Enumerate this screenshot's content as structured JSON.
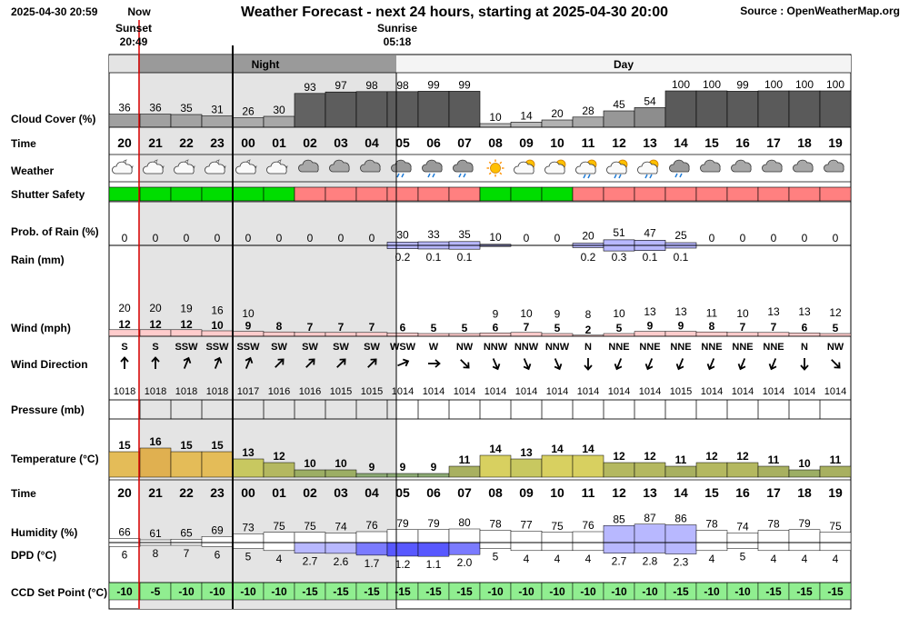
{
  "header": {
    "timestamp": "2025-04-30 20:59",
    "now_label": "Now",
    "title": "Weather Forecast - next 24 hours, starting at 2025-04-30 20:00",
    "source": "Source : OpenWeatherMap.org",
    "sunset_label": "Sunset",
    "sunset_time": "20:49",
    "sunrise_label": "Sunrise",
    "sunrise_time": "05:18",
    "night_label": "Night",
    "day_label": "Day"
  },
  "row_labels": {
    "cloud": "Cloud Cover (%)",
    "time": "Time",
    "weather": "Weather",
    "shutter": "Shutter Safety",
    "rain_prob": "Prob. of Rain (%)",
    "rain": "Rain (mm)",
    "wind": "Wind (mph)",
    "wind_dir": "Wind Direction",
    "pressure": "Pressure (mb)",
    "temperature": "Temperature (°C)",
    "humidity": "Humidity (%)",
    "dpd": "DPD (°C)",
    "ccd": "CCD Set Point (°C)"
  },
  "colors": {
    "safe": "#00dd00",
    "unsafe": "#ff8080",
    "night_shade": "#e4e4e4",
    "now_line": "#dd0000",
    "rain_fill": "#b8b8ff",
    "dpd_fill": "#5858ff",
    "ccd_fill": "#90ee90"
  },
  "chart_data": {
    "type": "table",
    "hours": [
      "20",
      "21",
      "22",
      "23",
      "00",
      "01",
      "02",
      "03",
      "04",
      "05",
      "06",
      "07",
      "08",
      "09",
      "10",
      "11",
      "12",
      "13",
      "14",
      "15",
      "16",
      "17",
      "18",
      "19"
    ],
    "cloud_cover": [
      "36",
      "36",
      "35",
      "31",
      "26",
      "30",
      "93",
      "97",
      "98",
      "98",
      "99",
      "99",
      "10",
      "14",
      "20",
      "28",
      "45",
      "54",
      "100",
      "100",
      "99",
      "100",
      "100",
      "100"
    ],
    "weather_icons": [
      "night-partly-cloudy-icon",
      "night-partly-cloudy-icon",
      "night-partly-cloudy-icon",
      "night-partly-cloudy-icon",
      "night-partly-cloudy-icon",
      "night-partly-cloudy-icon",
      "cloudy-icon",
      "cloudy-icon",
      "cloudy-icon",
      "rain-icon",
      "rain-icon",
      "rain-icon",
      "sun-icon",
      "partly-cloudy-icon",
      "partly-cloudy-icon",
      "sun-shower-icon",
      "sun-shower-icon",
      "sun-shower-icon",
      "rain-icon",
      "cloudy-icon",
      "cloudy-icon",
      "cloudy-icon",
      "cloudy-icon",
      "cloudy-icon"
    ],
    "shutter_safe": [
      true,
      true,
      true,
      true,
      true,
      true,
      false,
      false,
      false,
      false,
      false,
      false,
      true,
      true,
      true,
      false,
      false,
      false,
      false,
      false,
      false,
      false,
      false,
      false
    ],
    "rain_prob": [
      "0",
      "0",
      "0",
      "0",
      "0",
      "0",
      "0",
      "0",
      "0",
      "30",
      "33",
      "35",
      "10",
      "0",
      "0",
      "20",
      "51",
      "47",
      "25",
      "0",
      "0",
      "0",
      "0",
      "0"
    ],
    "rain_mm": [
      "",
      "",
      "",
      "",
      "",
      "",
      "",
      "",
      "",
      "0.2",
      "0.1",
      "0.1",
      "",
      "",
      "",
      "0.2",
      "0.3",
      "0.1",
      "0.1",
      "",
      "",
      "",
      "",
      ""
    ],
    "wind_gust": [
      "20",
      "20",
      "19",
      "16",
      "10",
      "",
      "",
      "",
      "",
      "",
      "",
      "",
      "9",
      "10",
      "9",
      "8",
      "10",
      "13",
      "13",
      "11",
      "10",
      "13",
      "13",
      "12"
    ],
    "wind_speed": [
      "12",
      "12",
      "12",
      "10",
      "9",
      "8",
      "7",
      "7",
      "7",
      "6",
      "5",
      "5",
      "6",
      "7",
      "5",
      "2",
      "5",
      "9",
      "9",
      "8",
      "7",
      "7",
      "6",
      "5"
    ],
    "wind_dir": [
      "S",
      "S",
      "SSW",
      "SSW",
      "SSW",
      "SW",
      "SW",
      "SW",
      "SW",
      "WSW",
      "W",
      "NW",
      "NNW",
      "NNW",
      "NNW",
      "N",
      "NNE",
      "NNE",
      "NNE",
      "NNE",
      "NNE",
      "NNE",
      "N",
      "NW"
    ],
    "wind_deg": [
      180,
      180,
      202,
      202,
      202,
      225,
      225,
      225,
      225,
      247,
      270,
      315,
      337,
      337,
      337,
      0,
      22,
      22,
      22,
      22,
      22,
      22,
      0,
      315
    ],
    "pressure": [
      "1018",
      "1018",
      "1018",
      "1018",
      "1017",
      "1016",
      "1016",
      "1015",
      "1015",
      "1014",
      "1014",
      "1014",
      "1014",
      "1014",
      "1014",
      "1014",
      "1014",
      "1014",
      "1015",
      "1014",
      "1014",
      "1014",
      "1014",
      "1014"
    ],
    "temperature": [
      "15",
      "16",
      "15",
      "15",
      "13",
      "12",
      "10",
      "10",
      "9",
      "9",
      "9",
      "11",
      "14",
      "13",
      "14",
      "14",
      "12",
      "12",
      "11",
      "12",
      "12",
      "11",
      "10",
      "11"
    ],
    "humidity": [
      "66",
      "61",
      "65",
      "69",
      "73",
      "75",
      "75",
      "74",
      "76",
      "79",
      "79",
      "80",
      "78",
      "77",
      "75",
      "76",
      "85",
      "87",
      "86",
      "78",
      "74",
      "78",
      "79",
      "75"
    ],
    "dpd": [
      "6",
      "8",
      "7",
      "6",
      "5",
      "4",
      "2.7",
      "2.6",
      "1.7",
      "1.2",
      "1.1",
      "2.0",
      "5",
      "4",
      "4",
      "4",
      "2.7",
      "2.8",
      "2.3",
      "4",
      "5",
      "4",
      "4",
      "4"
    ],
    "ccd_set_point": [
      "-10",
      "-5",
      "-10",
      "-10",
      "-10",
      "-10",
      "-15",
      "-15",
      "-15",
      "-15",
      "-15",
      "-15",
      "-10",
      "-10",
      "-10",
      "-10",
      "-10",
      "-10",
      "-15",
      "-10",
      "-10",
      "-15",
      "-15",
      "-15"
    ]
  }
}
